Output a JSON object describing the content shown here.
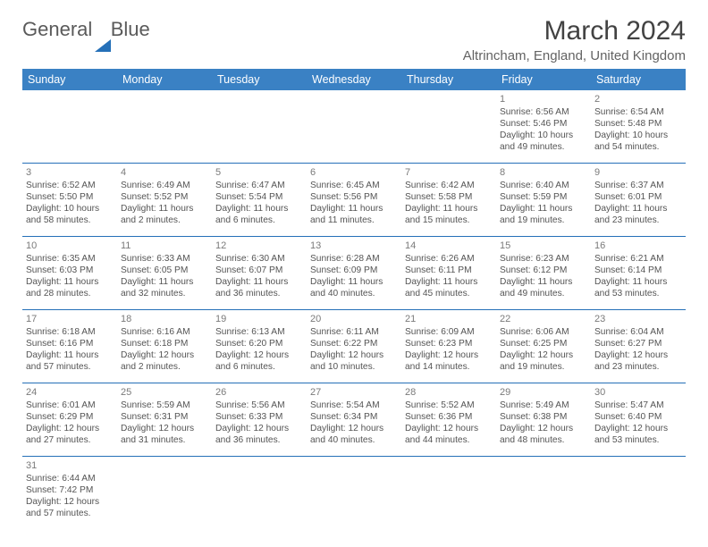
{
  "logo": {
    "text1": "General",
    "text2": "Blue"
  },
  "title": "March 2024",
  "location": "Altrincham, England, United Kingdom",
  "colors": {
    "header_bg": "#3a81c4",
    "header_text": "#ffffff",
    "cell_border": "#2570b8",
    "body_text": "#545454",
    "title_text": "#424242",
    "location_text": "#636363"
  },
  "fonts": {
    "title_size": 30,
    "location_size": 15,
    "header_size": 12.5,
    "cell_size": 10.2,
    "daynum_size": 11
  },
  "day_headers": [
    "Sunday",
    "Monday",
    "Tuesday",
    "Wednesday",
    "Thursday",
    "Friday",
    "Saturday"
  ],
  "weeks": [
    [
      null,
      null,
      null,
      null,
      null,
      {
        "n": "1",
        "sr": "Sunrise: 6:56 AM",
        "ss": "Sunset: 5:46 PM",
        "dl": "Daylight: 10 hours and 49 minutes."
      },
      {
        "n": "2",
        "sr": "Sunrise: 6:54 AM",
        "ss": "Sunset: 5:48 PM",
        "dl": "Daylight: 10 hours and 54 minutes."
      }
    ],
    [
      {
        "n": "3",
        "sr": "Sunrise: 6:52 AM",
        "ss": "Sunset: 5:50 PM",
        "dl": "Daylight: 10 hours and 58 minutes."
      },
      {
        "n": "4",
        "sr": "Sunrise: 6:49 AM",
        "ss": "Sunset: 5:52 PM",
        "dl": "Daylight: 11 hours and 2 minutes."
      },
      {
        "n": "5",
        "sr": "Sunrise: 6:47 AM",
        "ss": "Sunset: 5:54 PM",
        "dl": "Daylight: 11 hours and 6 minutes."
      },
      {
        "n": "6",
        "sr": "Sunrise: 6:45 AM",
        "ss": "Sunset: 5:56 PM",
        "dl": "Daylight: 11 hours and 11 minutes."
      },
      {
        "n": "7",
        "sr": "Sunrise: 6:42 AM",
        "ss": "Sunset: 5:58 PM",
        "dl": "Daylight: 11 hours and 15 minutes."
      },
      {
        "n": "8",
        "sr": "Sunrise: 6:40 AM",
        "ss": "Sunset: 5:59 PM",
        "dl": "Daylight: 11 hours and 19 minutes."
      },
      {
        "n": "9",
        "sr": "Sunrise: 6:37 AM",
        "ss": "Sunset: 6:01 PM",
        "dl": "Daylight: 11 hours and 23 minutes."
      }
    ],
    [
      {
        "n": "10",
        "sr": "Sunrise: 6:35 AM",
        "ss": "Sunset: 6:03 PM",
        "dl": "Daylight: 11 hours and 28 minutes."
      },
      {
        "n": "11",
        "sr": "Sunrise: 6:33 AM",
        "ss": "Sunset: 6:05 PM",
        "dl": "Daylight: 11 hours and 32 minutes."
      },
      {
        "n": "12",
        "sr": "Sunrise: 6:30 AM",
        "ss": "Sunset: 6:07 PM",
        "dl": "Daylight: 11 hours and 36 minutes."
      },
      {
        "n": "13",
        "sr": "Sunrise: 6:28 AM",
        "ss": "Sunset: 6:09 PM",
        "dl": "Daylight: 11 hours and 40 minutes."
      },
      {
        "n": "14",
        "sr": "Sunrise: 6:26 AM",
        "ss": "Sunset: 6:11 PM",
        "dl": "Daylight: 11 hours and 45 minutes."
      },
      {
        "n": "15",
        "sr": "Sunrise: 6:23 AM",
        "ss": "Sunset: 6:12 PM",
        "dl": "Daylight: 11 hours and 49 minutes."
      },
      {
        "n": "16",
        "sr": "Sunrise: 6:21 AM",
        "ss": "Sunset: 6:14 PM",
        "dl": "Daylight: 11 hours and 53 minutes."
      }
    ],
    [
      {
        "n": "17",
        "sr": "Sunrise: 6:18 AM",
        "ss": "Sunset: 6:16 PM",
        "dl": "Daylight: 11 hours and 57 minutes."
      },
      {
        "n": "18",
        "sr": "Sunrise: 6:16 AM",
        "ss": "Sunset: 6:18 PM",
        "dl": "Daylight: 12 hours and 2 minutes."
      },
      {
        "n": "19",
        "sr": "Sunrise: 6:13 AM",
        "ss": "Sunset: 6:20 PM",
        "dl": "Daylight: 12 hours and 6 minutes."
      },
      {
        "n": "20",
        "sr": "Sunrise: 6:11 AM",
        "ss": "Sunset: 6:22 PM",
        "dl": "Daylight: 12 hours and 10 minutes."
      },
      {
        "n": "21",
        "sr": "Sunrise: 6:09 AM",
        "ss": "Sunset: 6:23 PM",
        "dl": "Daylight: 12 hours and 14 minutes."
      },
      {
        "n": "22",
        "sr": "Sunrise: 6:06 AM",
        "ss": "Sunset: 6:25 PM",
        "dl": "Daylight: 12 hours and 19 minutes."
      },
      {
        "n": "23",
        "sr": "Sunrise: 6:04 AM",
        "ss": "Sunset: 6:27 PM",
        "dl": "Daylight: 12 hours and 23 minutes."
      }
    ],
    [
      {
        "n": "24",
        "sr": "Sunrise: 6:01 AM",
        "ss": "Sunset: 6:29 PM",
        "dl": "Daylight: 12 hours and 27 minutes."
      },
      {
        "n": "25",
        "sr": "Sunrise: 5:59 AM",
        "ss": "Sunset: 6:31 PM",
        "dl": "Daylight: 12 hours and 31 minutes."
      },
      {
        "n": "26",
        "sr": "Sunrise: 5:56 AM",
        "ss": "Sunset: 6:33 PM",
        "dl": "Daylight: 12 hours and 36 minutes."
      },
      {
        "n": "27",
        "sr": "Sunrise: 5:54 AM",
        "ss": "Sunset: 6:34 PM",
        "dl": "Daylight: 12 hours and 40 minutes."
      },
      {
        "n": "28",
        "sr": "Sunrise: 5:52 AM",
        "ss": "Sunset: 6:36 PM",
        "dl": "Daylight: 12 hours and 44 minutes."
      },
      {
        "n": "29",
        "sr": "Sunrise: 5:49 AM",
        "ss": "Sunset: 6:38 PM",
        "dl": "Daylight: 12 hours and 48 minutes."
      },
      {
        "n": "30",
        "sr": "Sunrise: 5:47 AM",
        "ss": "Sunset: 6:40 PM",
        "dl": "Daylight: 12 hours and 53 minutes."
      }
    ],
    [
      {
        "n": "31",
        "sr": "Sunrise: 6:44 AM",
        "ss": "Sunset: 7:42 PM",
        "dl": "Daylight: 12 hours and 57 minutes."
      },
      null,
      null,
      null,
      null,
      null,
      null
    ]
  ]
}
